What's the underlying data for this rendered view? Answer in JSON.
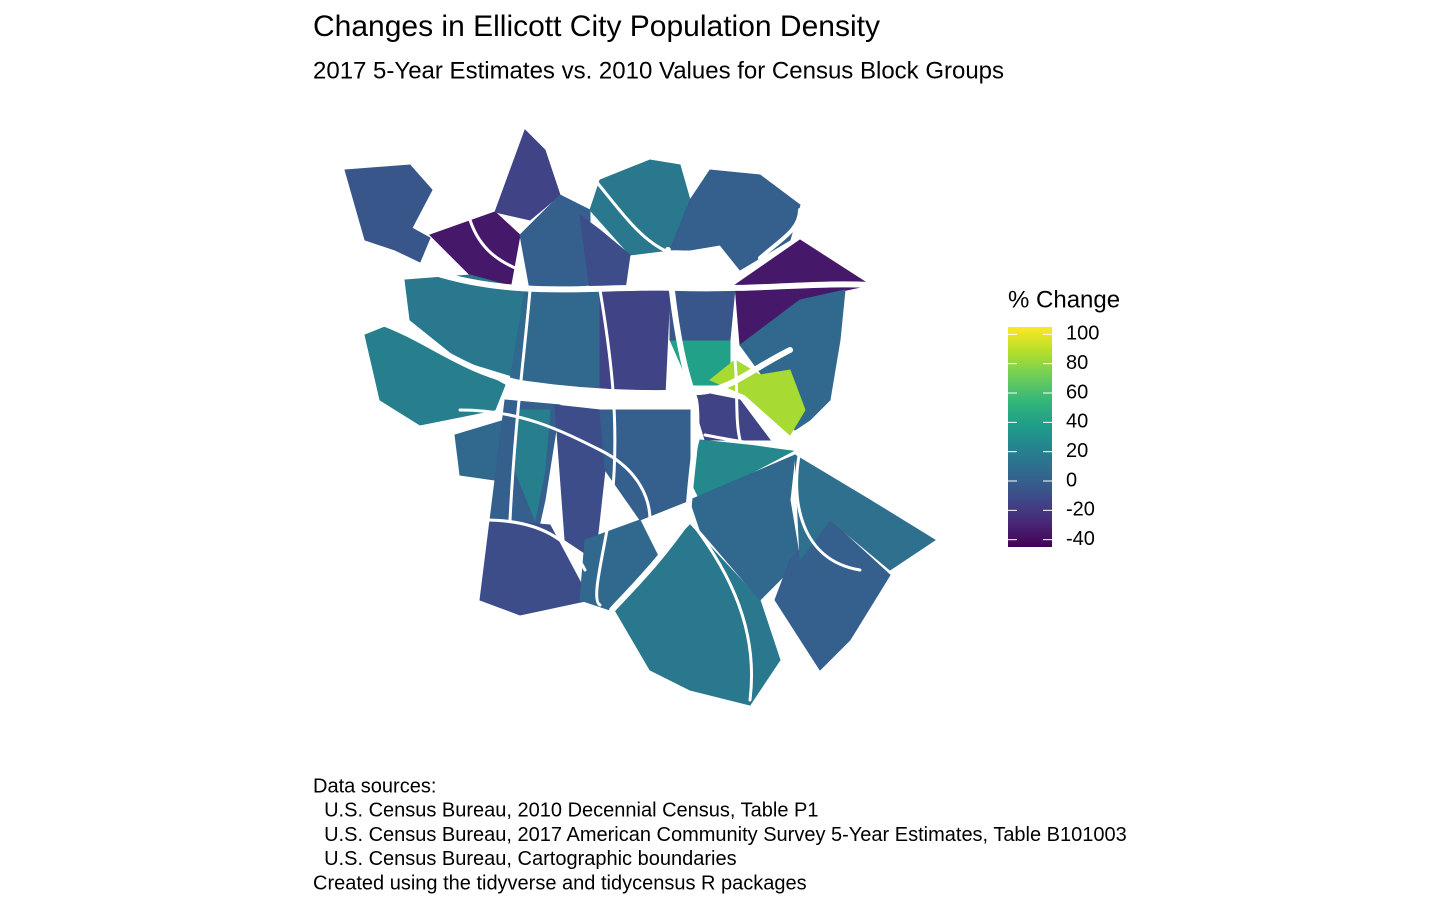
{
  "chart_data": {
    "type": "choropleth",
    "title": "Changes in Ellicott City Population Density",
    "subtitle": "2017 5-Year Estimates vs. 2010 Values for Census Block Groups",
    "legend_title": "% Change",
    "colorscale": "viridis",
    "clim": [
      -45,
      105
    ],
    "cticks": [
      100,
      80,
      60,
      40,
      20,
      0,
      -20,
      -40
    ],
    "values": [
      -5,
      -35,
      -15,
      0,
      15,
      -10,
      0,
      -35,
      5,
      40,
      85,
      -5,
      15,
      20,
      5,
      -15,
      -15,
      5,
      0,
      20,
      -10,
      0,
      25,
      -10,
      5,
      15,
      5,
      0,
      10
    ],
    "caption": [
      "Data sources:",
      "  U.S. Census Bureau, 2010 Decennial Census, Table P1",
      "  U.S. Census Bureau, 2017 American Community Survey 5-Year Estimates, Table B101003",
      "  U.S. Census Bureau, Cartographic boundaries",
      "Created using the tidyverse and tidycensus R packages"
    ]
  }
}
